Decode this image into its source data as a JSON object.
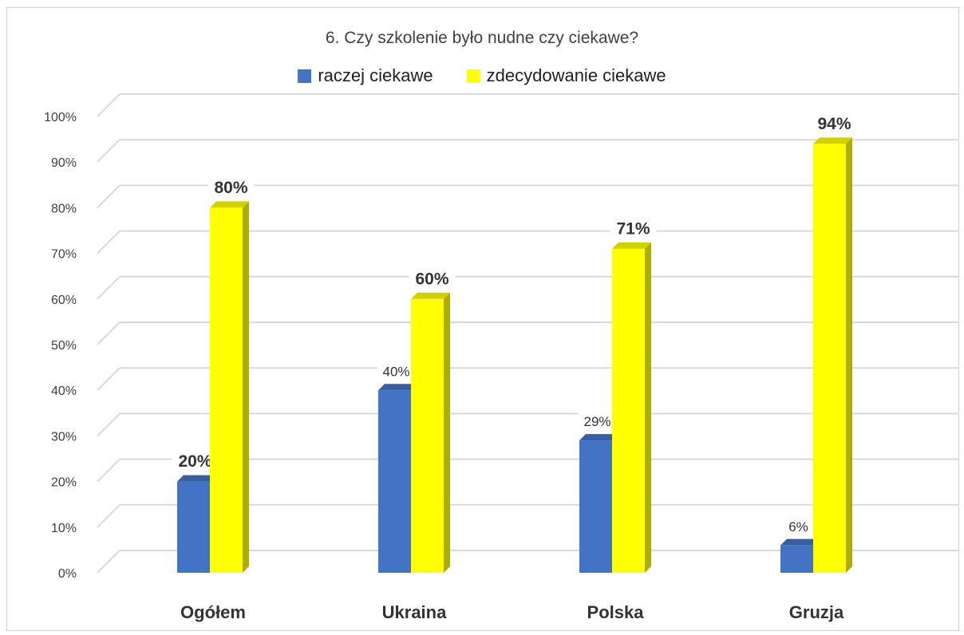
{
  "chart_data": {
    "type": "bar",
    "title": "6. Czy szkolenie było nudne czy ciekawe?",
    "categories": [
      "Ogółem",
      "Ukraina",
      "Polska",
      "Gruzja"
    ],
    "series": [
      {
        "name": "raczej ciekawe",
        "color": "#4472C4",
        "values": [
          20,
          40,
          29,
          6
        ],
        "labels": [
          "20%",
          "40%",
          "29%",
          "6%"
        ]
      },
      {
        "name": "zdecydowanie ciekawe",
        "color": "#FFFF00",
        "values": [
          80,
          60,
          71,
          94
        ],
        "labels": [
          "80%",
          "60%",
          "71%",
          "94%"
        ]
      }
    ],
    "yticks": [
      "0%",
      "10%",
      "20%",
      "30%",
      "40%",
      "50%",
      "60%",
      "70%",
      "80%",
      "90%",
      "100%"
    ],
    "ylim": [
      0,
      100
    ],
    "grid": true,
    "legend": "top",
    "style": "3d-clustered-column"
  }
}
